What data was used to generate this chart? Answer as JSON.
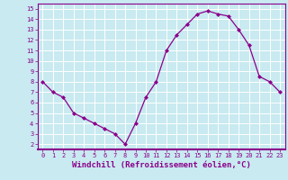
{
  "x": [
    0,
    1,
    2,
    3,
    4,
    5,
    6,
    7,
    8,
    9,
    10,
    11,
    12,
    13,
    14,
    15,
    16,
    17,
    18,
    19,
    20,
    21,
    22,
    23
  ],
  "y": [
    8.0,
    7.0,
    6.5,
    5.0,
    4.5,
    4.0,
    3.5,
    3.0,
    2.0,
    4.0,
    6.5,
    8.0,
    11.0,
    12.5,
    13.5,
    14.5,
    14.8,
    14.5,
    14.3,
    13.0,
    11.5,
    8.5,
    8.0,
    7.0
  ],
  "xlim": [
    -0.5,
    23.5
  ],
  "ylim": [
    1.5,
    15.5
  ],
  "yticks": [
    2,
    3,
    4,
    5,
    6,
    7,
    8,
    9,
    10,
    11,
    12,
    13,
    14,
    15
  ],
  "xticks": [
    0,
    1,
    2,
    3,
    4,
    5,
    6,
    7,
    8,
    9,
    10,
    11,
    12,
    13,
    14,
    15,
    16,
    17,
    18,
    19,
    20,
    21,
    22,
    23
  ],
  "xlabel": "Windchill (Refroidissement éolien,°C)",
  "line_color": "#8B008B",
  "marker": "D",
  "marker_size": 2,
  "bg_color": "#c8eaf0",
  "grid_color": "#ffffff",
  "tick_color": "#8B008B",
  "label_color": "#8B008B",
  "tick_fontsize": 5,
  "xlabel_fontsize": 6.5,
  "spine_color": "#8B008B"
}
